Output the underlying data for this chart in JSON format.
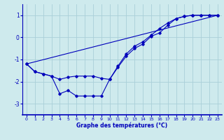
{
  "xlabel": "Graphe des températures (°C)",
  "background_color": "#ceeaed",
  "grid_color": "#aacfd8",
  "line_color": "#0000bb",
  "xlim": [
    -0.5,
    23.5
  ],
  "ylim": [
    -3.5,
    1.5
  ],
  "yticks": [
    -3,
    -2,
    -1,
    0,
    1
  ],
  "xticks": [
    0,
    1,
    2,
    3,
    4,
    5,
    6,
    7,
    8,
    9,
    10,
    11,
    12,
    13,
    14,
    15,
    16,
    17,
    18,
    19,
    20,
    21,
    22,
    23
  ],
  "line1_x": [
    0,
    1,
    2,
    3,
    4,
    5,
    6,
    7,
    8,
    9,
    10,
    11,
    12,
    13,
    14,
    15,
    16,
    17,
    18,
    19,
    20,
    21,
    22,
    23
  ],
  "line1_y": [
    -1.2,
    -1.55,
    -1.65,
    -1.75,
    -2.55,
    -2.4,
    -2.65,
    -2.65,
    -2.65,
    -2.65,
    -1.9,
    -1.35,
    -0.85,
    -0.5,
    -0.3,
    0.05,
    0.2,
    0.55,
    0.85,
    0.95,
    1.0,
    1.0,
    1.0,
    1.0
  ],
  "line2_x": [
    0,
    1,
    2,
    3,
    4,
    5,
    6,
    7,
    8,
    9,
    10,
    11,
    12,
    13,
    14,
    15,
    16,
    17,
    18,
    19,
    20,
    21,
    22,
    23
  ],
  "line2_y": [
    -1.2,
    -1.55,
    -1.65,
    -1.75,
    -1.9,
    -1.8,
    -1.75,
    -1.75,
    -1.75,
    -1.85,
    -1.9,
    -1.3,
    -0.75,
    -0.4,
    -0.2,
    0.1,
    0.4,
    0.65,
    0.85,
    0.95,
    1.0,
    1.0,
    1.0,
    1.0
  ],
  "line3_x": [
    0,
    23
  ],
  "line3_y": [
    -1.2,
    1.0
  ]
}
